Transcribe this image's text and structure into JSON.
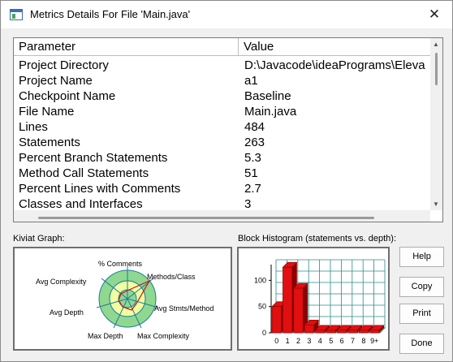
{
  "window": {
    "title": "Metrics Details For File 'Main.java'",
    "close_symbol": "✕"
  },
  "table": {
    "headers": [
      "Parameter",
      "Value"
    ],
    "rows": [
      {
        "param": "Project Directory",
        "value": "D:\\Javacode\\ideaPrograms\\Eleva"
      },
      {
        "param": "Project Name",
        "value": "a1"
      },
      {
        "param": "Checkpoint Name",
        "value": "Baseline"
      },
      {
        "param": "File Name",
        "value": "Main.java"
      },
      {
        "param": "Lines",
        "value": "484"
      },
      {
        "param": "Statements",
        "value": "263"
      },
      {
        "param": "Percent Branch Statements",
        "value": "5.3"
      },
      {
        "param": "Method Call Statements",
        "value": "51"
      },
      {
        "param": "Percent Lines with Comments",
        "value": "2.7"
      },
      {
        "param": "Classes and Interfaces",
        "value": "3"
      }
    ]
  },
  "kiviat": {
    "label": "Kiviat Graph:",
    "axes": [
      "% Comments",
      "Methods/Class",
      "Avg Stmts/Method",
      "Max Complexity",
      "Max Depth",
      "Avg Depth",
      "Avg Complexity"
    ],
    "colors": {
      "outer": "#8fd88f",
      "inner": "#f0ffa0",
      "spokes": "#1e7a9e",
      "polygon": "#d01010"
    }
  },
  "histogram": {
    "label": "Block Histogram (statements vs. depth):",
    "colors": {
      "bar": "#e01010",
      "bar_side": "#8a0000",
      "grid": "#2a8a8a",
      "floor": "#cfe8ea"
    }
  },
  "chart_data": {
    "type": "bar",
    "title": "Block Histogram (statements vs. depth):",
    "xlabel": "",
    "ylabel": "",
    "categories": [
      "0",
      "1",
      "2",
      "3",
      "4",
      "5",
      "6",
      "7",
      "8",
      "9+"
    ],
    "values": [
      50,
      125,
      85,
      15,
      5,
      5,
      5,
      5,
      5,
      5
    ],
    "ylim": [
      0,
      130
    ],
    "yticks": [
      0,
      50,
      100
    ],
    "grid": true
  },
  "buttons": {
    "help": "Help",
    "copy": "Copy",
    "print": "Print",
    "done": "Done"
  },
  "icons": {
    "scroll_up": "up-arrow-icon",
    "scroll_down": "down-arrow-icon"
  }
}
